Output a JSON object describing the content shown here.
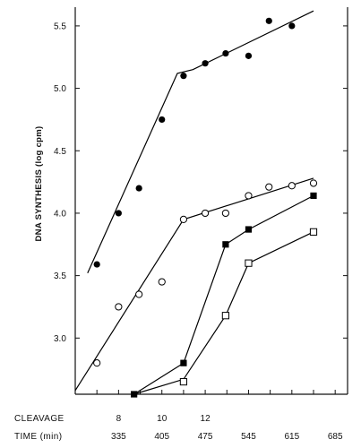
{
  "chart_data": {
    "type": "line",
    "ylabel": "DNA SYNTHESIS  (log cpm)",
    "xlabel": "",
    "title": "",
    "ylim": [
      2.55,
      5.65
    ],
    "xlim": [
      265,
      705
    ],
    "grid": false,
    "legend": "none",
    "y_ticks": [
      {
        "value": 3.0,
        "label": "3.0"
      },
      {
        "value": 3.5,
        "label": "3.5"
      },
      {
        "value": 4.0,
        "label": "4.0"
      },
      {
        "value": 4.5,
        "label": "4.5"
      },
      {
        "value": 5.0,
        "label": "5.0"
      },
      {
        "value": 5.5,
        "label": "5.5"
      }
    ],
    "x_ticks": [
      265,
      300,
      335,
      370,
      405,
      440,
      475,
      510,
      545,
      580,
      615,
      650,
      685
    ],
    "time_row": {
      "label": "TIME (min)",
      "values": [
        335,
        405,
        475,
        545,
        615,
        685
      ],
      "labels": [
        "335",
        "405",
        "475",
        "545",
        "615",
        "685"
      ]
    },
    "cleavage_row": {
      "label": "CLEAVAGE",
      "positions": [
        335,
        405,
        475
      ],
      "labels": [
        "8",
        "10",
        "12"
      ]
    },
    "series": [
      {
        "marker": "filled-circle",
        "color": "#000000",
        "points": [
          [
            300,
            3.59
          ],
          [
            335,
            4.0
          ],
          [
            368,
            4.2
          ],
          [
            405,
            4.75
          ],
          [
            440,
            5.1
          ],
          [
            475,
            5.2
          ],
          [
            508,
            5.28
          ],
          [
            545,
            5.26
          ],
          [
            578,
            5.54
          ],
          [
            615,
            5.5
          ]
        ],
        "fit_line": [
          [
            285,
            3.52
          ],
          [
            430,
            5.12
          ],
          [
            455,
            5.15
          ],
          [
            650,
            5.62
          ]
        ]
      },
      {
        "marker": "open-circle",
        "color": "#000000",
        "points": [
          [
            300,
            2.8
          ],
          [
            335,
            3.25
          ],
          [
            368,
            3.35
          ],
          [
            405,
            3.45
          ],
          [
            440,
            3.95
          ],
          [
            475,
            4.0
          ],
          [
            508,
            4.0
          ],
          [
            545,
            4.14
          ],
          [
            578,
            4.21
          ],
          [
            615,
            4.22
          ],
          [
            650,
            4.24
          ]
        ],
        "fit_line": [
          [
            265,
            2.58
          ],
          [
            440,
            3.95
          ],
          [
            650,
            4.28
          ]
        ]
      },
      {
        "marker": "filled-square",
        "color": "#000000",
        "points": [
          [
            360,
            2.55
          ],
          [
            440,
            2.8
          ],
          [
            508,
            3.75
          ],
          [
            545,
            3.87
          ],
          [
            650,
            4.14
          ]
        ],
        "fit_line": [
          [
            360,
            2.55
          ],
          [
            440,
            2.8
          ],
          [
            508,
            3.75
          ],
          [
            545,
            3.87
          ],
          [
            650,
            4.14
          ]
        ]
      },
      {
        "marker": "open-square",
        "color": "#000000",
        "points": [
          [
            440,
            2.65
          ],
          [
            508,
            3.18
          ],
          [
            545,
            3.6
          ],
          [
            650,
            3.85
          ]
        ],
        "fit_line": [
          [
            360,
            2.55
          ],
          [
            440,
            2.67
          ],
          [
            508,
            3.18
          ],
          [
            545,
            3.6
          ],
          [
            650,
            3.85
          ]
        ]
      }
    ]
  }
}
